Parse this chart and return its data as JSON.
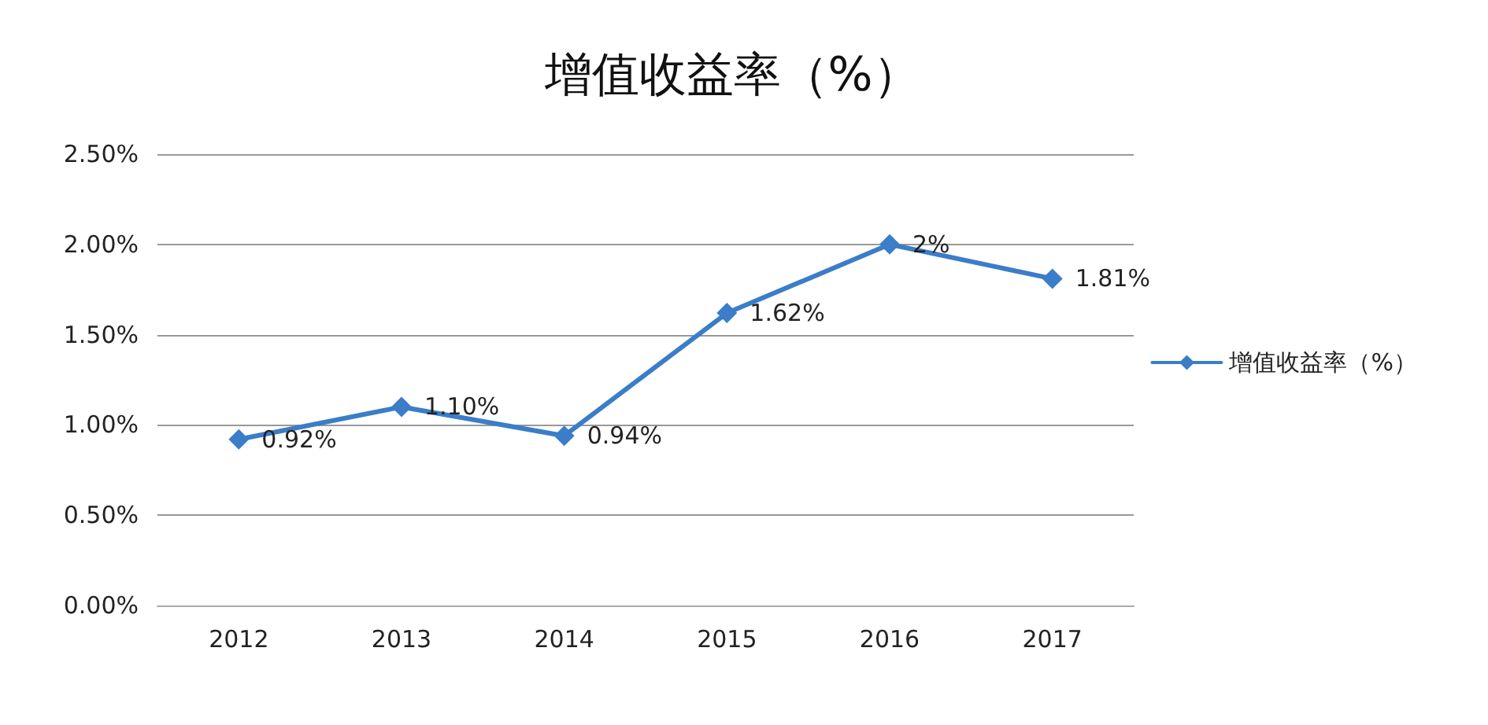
{
  "chart_data": {
    "type": "line",
    "title": "增值收益率（%）",
    "categories": [
      "2012",
      "2013",
      "2014",
      "2015",
      "2016",
      "2017"
    ],
    "series": [
      {
        "name": "增值收益率（%）",
        "color": "#3b7dc8",
        "values": [
          0.92,
          1.1,
          0.94,
          1.62,
          2,
          1.81
        ],
        "value_labels": [
          "0.92%",
          "1.10%",
          "0.94%",
          "1.62%",
          "2%",
          "1.81%"
        ]
      }
    ],
    "ylim": [
      0,
      2.5
    ],
    "yticks": [
      {
        "value": 0,
        "label": "0.00%"
      },
      {
        "value": 0.5,
        "label": "0.50%"
      },
      {
        "value": 1,
        "label": "1.00%"
      },
      {
        "value": 1.5,
        "label": "1.50%"
      },
      {
        "value": 2,
        "label": "2.00%"
      },
      {
        "value": 2.5,
        "label": "2.50%"
      }
    ],
    "grid": "y",
    "legend": "right",
    "marker": "diamond",
    "line_style": "solid"
  }
}
